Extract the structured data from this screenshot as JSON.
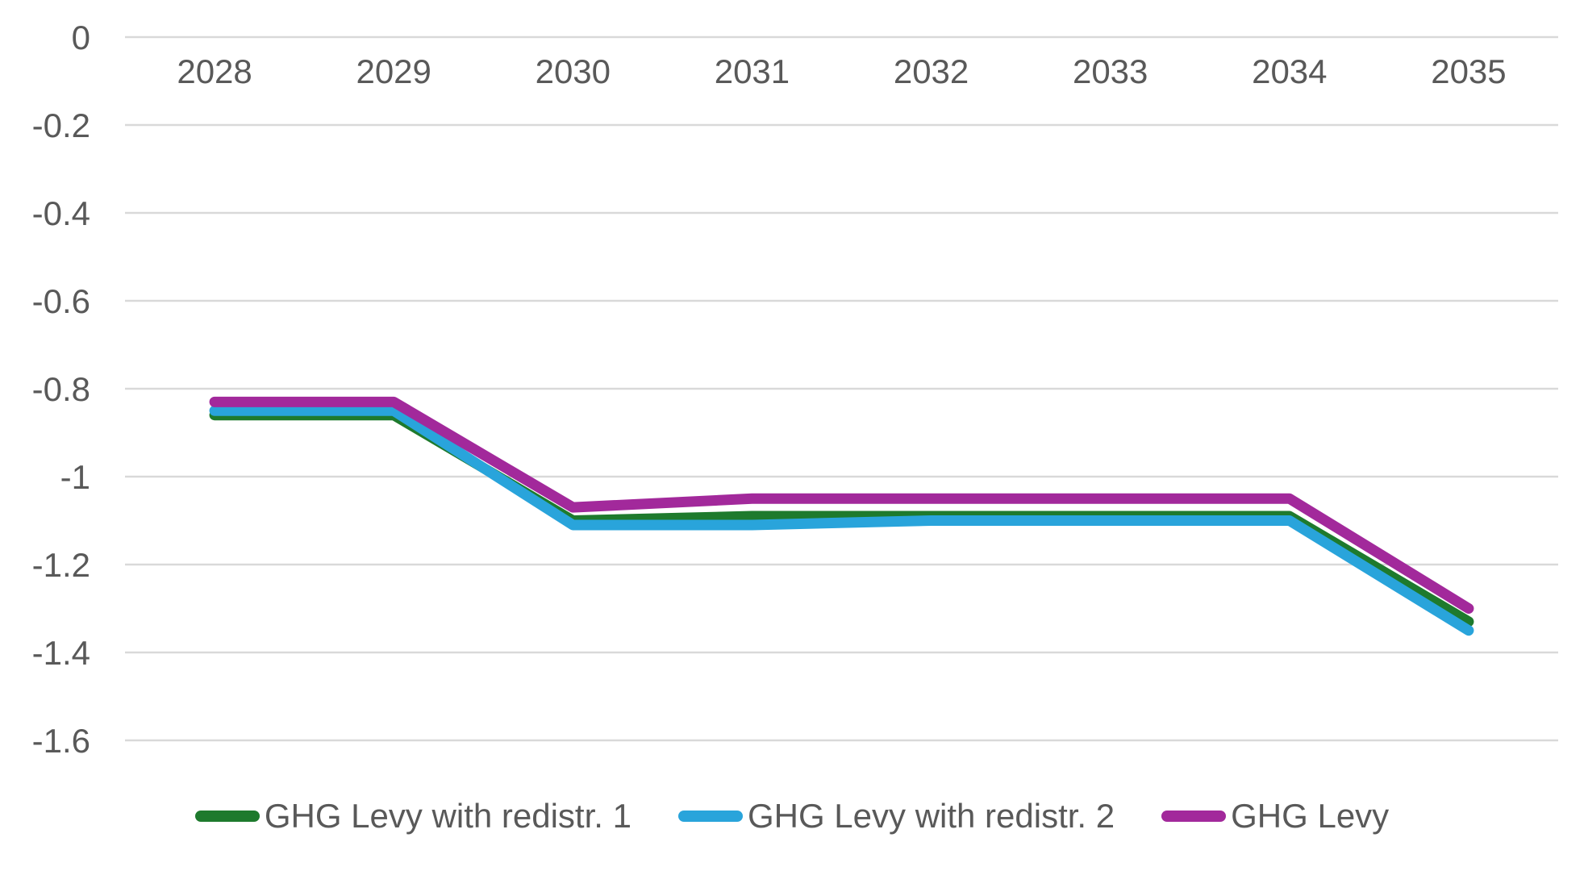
{
  "chart_data": {
    "type": "line",
    "title": "",
    "xlabel": "",
    "ylabel": "",
    "categories": [
      "2028",
      "2029",
      "2030",
      "2031",
      "2032",
      "2033",
      "2034",
      "2035"
    ],
    "series": [
      {
        "name": "GHG Levy with redistr. 1",
        "color": "#1E7A2D",
        "values": [
          -0.86,
          -0.86,
          -1.1,
          -1.09,
          -1.09,
          -1.09,
          -1.09,
          -1.33
        ]
      },
      {
        "name": "GHG Levy with redistr. 2",
        "color": "#29A4DB",
        "values": [
          -0.85,
          -0.85,
          -1.11,
          -1.11,
          -1.1,
          -1.1,
          -1.1,
          -1.35
        ]
      },
      {
        "name": "GHG Levy",
        "color": "#A2299B",
        "values": [
          -0.83,
          -0.83,
          -1.07,
          -1.05,
          -1.05,
          -1.05,
          -1.05,
          -1.3
        ]
      }
    ],
    "y_ticks": [
      {
        "label": "0",
        "value": 0
      },
      {
        "label": "-0.2",
        "value": -0.2
      },
      {
        "label": "-0.4",
        "value": -0.4
      },
      {
        "label": "-0.6",
        "value": -0.6
      },
      {
        "label": "-0.8",
        "value": -0.8
      },
      {
        "label": "-1",
        "value": -1.0
      },
      {
        "label": "-1.2",
        "value": -1.2
      },
      {
        "label": "-1.4",
        "value": -1.4
      },
      {
        "label": "-1.6",
        "value": -1.6
      }
    ],
    "ylim": [
      -1.6,
      0
    ],
    "grid": true,
    "legend_position": "bottom",
    "gridline_color": "#D9D9D9",
    "text_color": "#595959"
  }
}
